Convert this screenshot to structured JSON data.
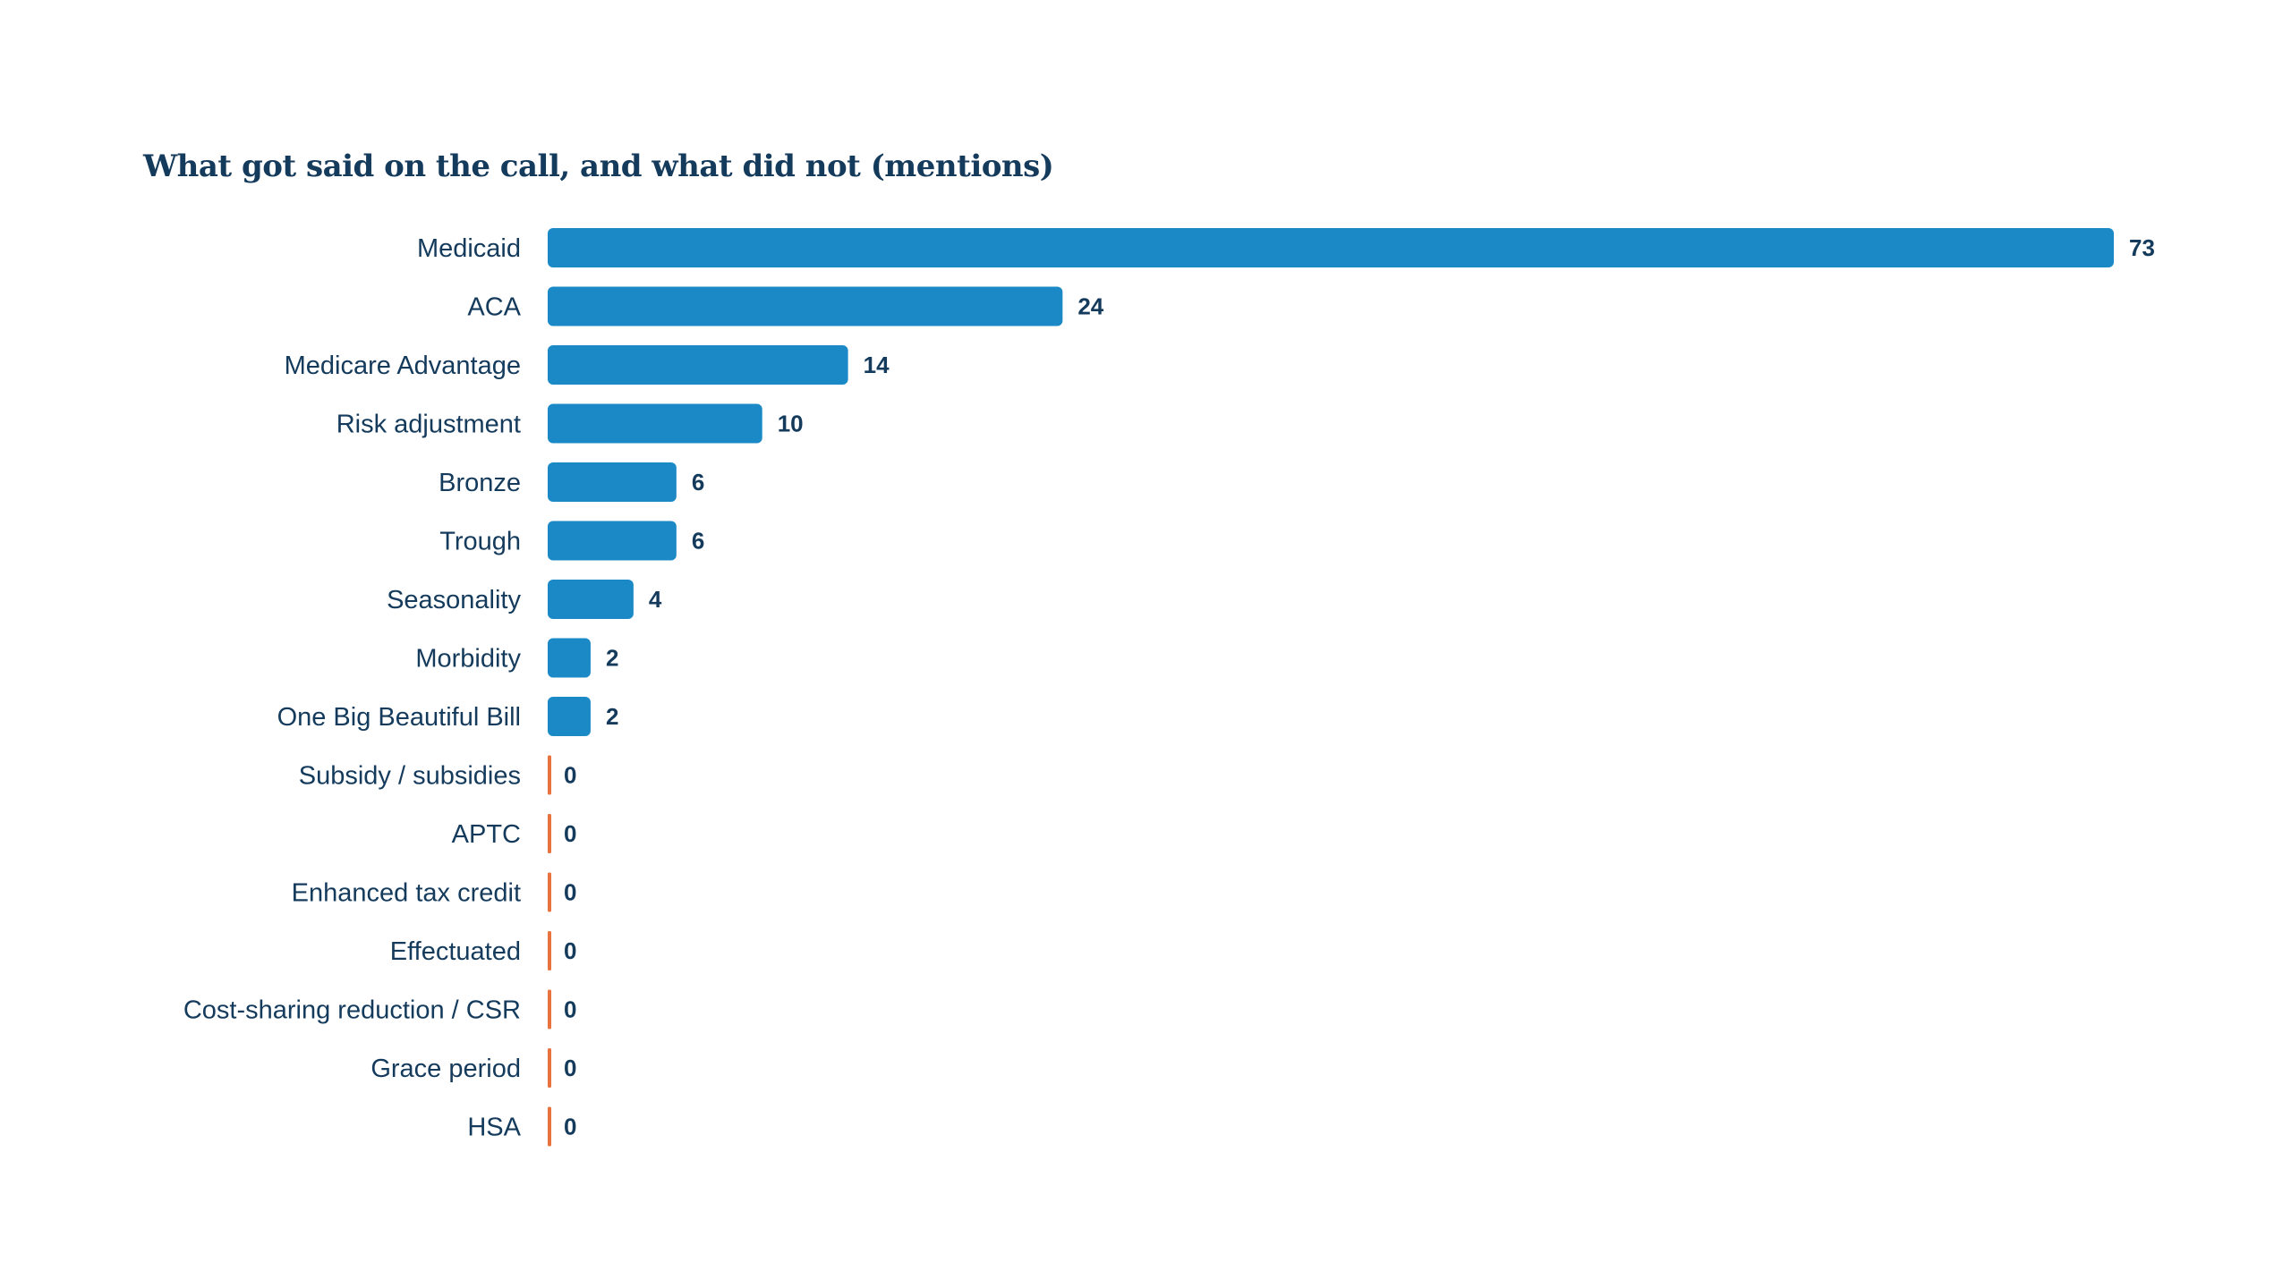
{
  "chart_data": {
    "type": "bar",
    "orientation": "horizontal",
    "title": "What got said on the call, and what did not (mentions)",
    "xlabel": "",
    "ylabel": "",
    "grid": false,
    "legend": "none",
    "categories": [
      "Medicaid",
      "ACA",
      "Medicare Advantage",
      "Risk adjustment",
      "Bronze",
      "Trough",
      "Seasonality",
      "Morbidity",
      "One Big Beautiful Bill",
      "Subsidy / subsidies",
      "APTC",
      "Enhanced tax credit",
      "Effectuated",
      "Cost-sharing reduction / CSR",
      "Grace period",
      "HSA"
    ],
    "values": [
      73,
      24,
      14,
      10,
      6,
      6,
      4,
      2,
      2,
      0,
      0,
      0,
      0,
      0,
      0,
      0
    ],
    "xlim": [
      0,
      73
    ],
    "colors": {
      "bar": "#1a89c6",
      "zero_marker": "#e8733f",
      "text": "#143a5c"
    }
  }
}
